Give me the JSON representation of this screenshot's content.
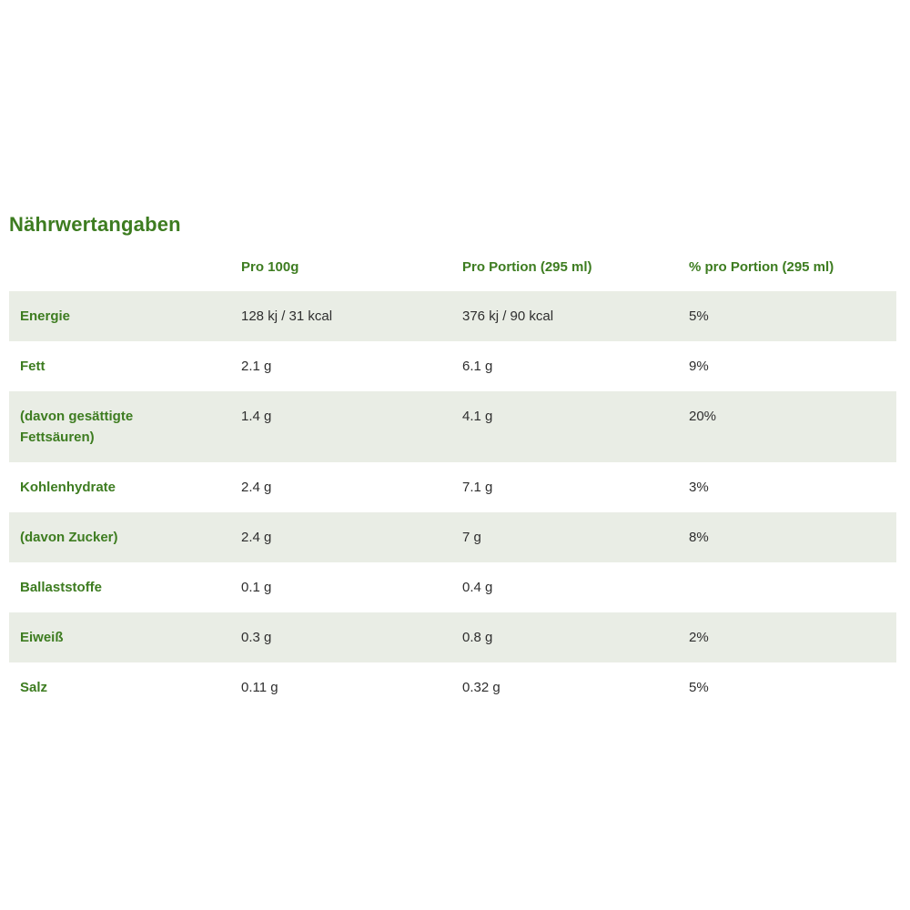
{
  "page": {
    "title": "Nährwertangaben"
  },
  "colors": {
    "accent_green": "#3d7c20",
    "shaded_row_bg": "#e9ede5",
    "value_text": "#2e2e2e",
    "background": "#ffffff"
  },
  "table": {
    "header": {
      "per_100g": "Pro 100g",
      "per_portion": "Pro Portion (295 ml)",
      "percent_per_portion": "% pro Portion (295 ml)"
    },
    "rows": [
      {
        "label": "Energie",
        "per_100g": "128 kj / 31 kcal",
        "per_portion": "376 kj / 90 kcal",
        "percent_per_portion": "5%"
      },
      {
        "label": "Fett",
        "per_100g": "2.1 g",
        "per_portion": "6.1 g",
        "percent_per_portion": "9%"
      },
      {
        "label": "(davon gesättigte Fettsäuren)",
        "per_100g": "1.4 g",
        "per_portion": "4.1 g",
        "percent_per_portion": "20%"
      },
      {
        "label": "Kohlenhydrate",
        "per_100g": "2.4 g",
        "per_portion": "7.1 g",
        "percent_per_portion": "3%"
      },
      {
        "label": "(davon Zucker)",
        "per_100g": "2.4 g",
        "per_portion": "7 g",
        "percent_per_portion": "8%"
      },
      {
        "label": "Ballaststoffe",
        "per_100g": "0.1 g",
        "per_portion": "0.4 g",
        "percent_per_portion": ""
      },
      {
        "label": "Eiweiß",
        "per_100g": "0.3 g",
        "per_portion": "0.8 g",
        "percent_per_portion": "2%"
      },
      {
        "label": "Salz",
        "per_100g": "0.11 g",
        "per_portion": "0.32 g",
        "percent_per_portion": "5%"
      }
    ]
  }
}
